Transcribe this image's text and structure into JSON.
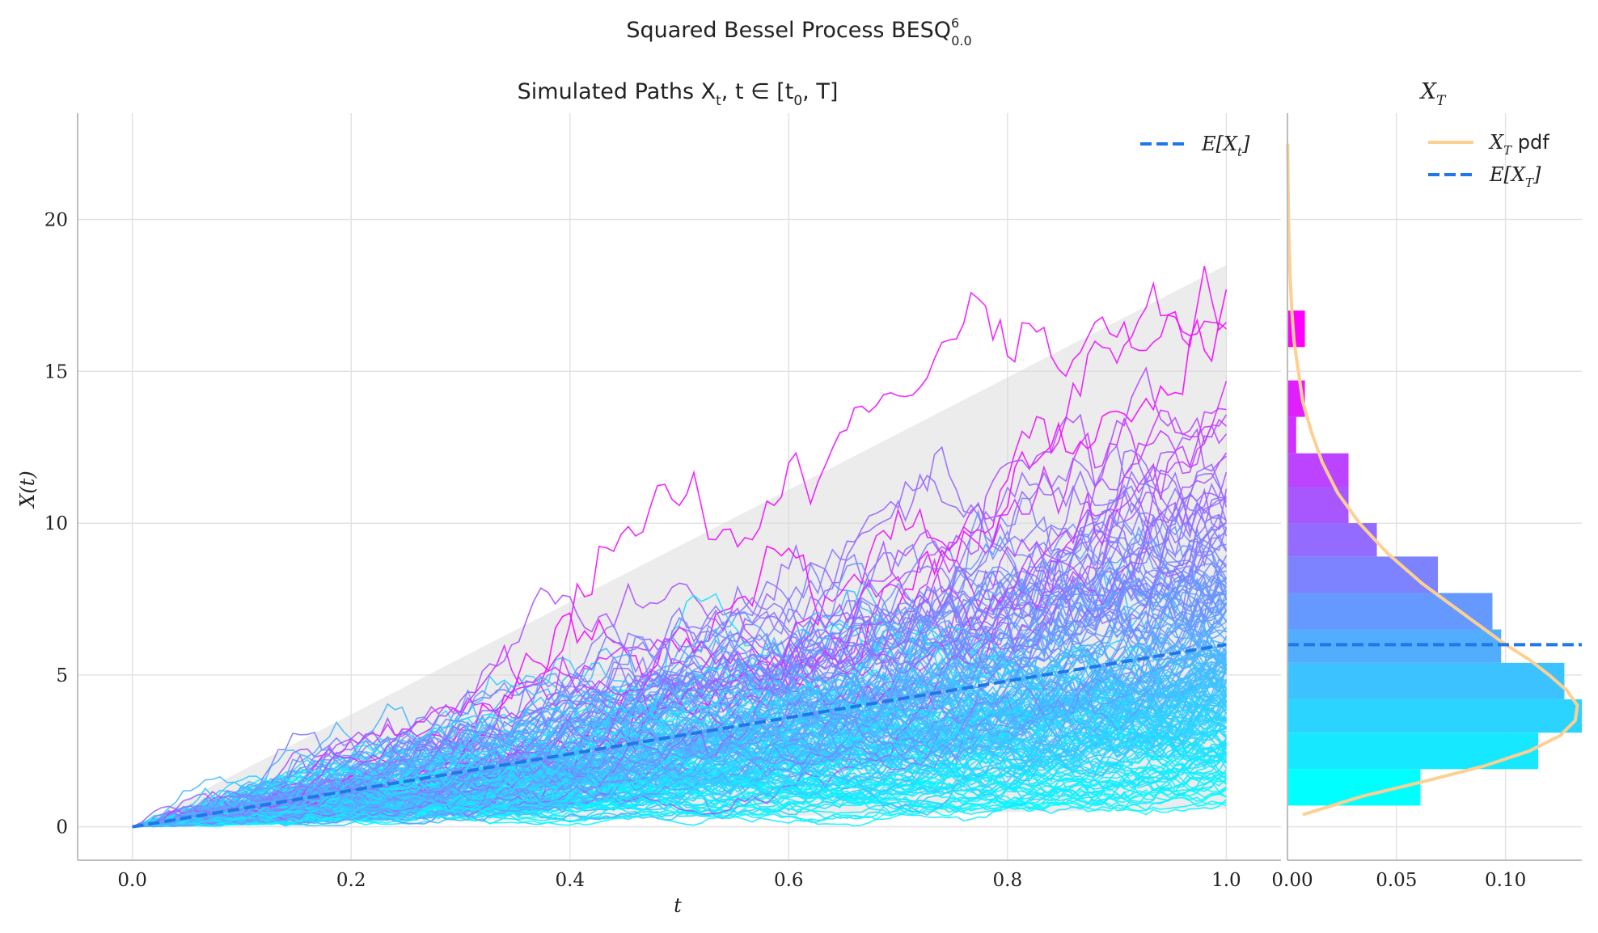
{
  "figure": {
    "suptitle": "Squared Bessel Process BESQ",
    "suptitle_sup": "6",
    "suptitle_sub": "0.0"
  },
  "chart_data": [
    {
      "type": "line",
      "title": "Simulated Paths X",
      "title_sub": "t",
      "title_tail": ", t ∈ [t",
      "title_sub2": "0",
      "title_end": ", T]",
      "xlabel": "t",
      "ylabel": "X(t)",
      "xlim": [
        -0.05,
        1.05
      ],
      "ylim": [
        -1.1,
        23.5
      ],
      "xticks": [
        0.0,
        0.2,
        0.4,
        0.6,
        0.8,
        1.0
      ],
      "xtick_labels": [
        "0.0",
        "0.2",
        "0.4",
        "0.6",
        "0.8",
        "1.0"
      ],
      "yticks": [
        0,
        5,
        10,
        15,
        20
      ],
      "ytick_labels": [
        "0",
        "5",
        "10",
        "15",
        "20"
      ],
      "grid": true,
      "legend_position": "top-right",
      "mean_line": {
        "name": "E[X",
        "name_sub": "t",
        "name_end": "]",
        "x": [
          0.0,
          1.0
        ],
        "y": [
          0.0,
          6.0
        ],
        "color": "#1f77e8"
      },
      "confidence_band": {
        "x": [
          0.0,
          1.0
        ],
        "upper": [
          0.0,
          18.5
        ],
        "lower": [
          0.0,
          0.6
        ],
        "color": "#d9d9d9"
      },
      "simulated_paths": {
        "count": 200,
        "x_start": 0.0,
        "x_end": 1.0,
        "y_start": 0.0,
        "final_value_range": [
          0.7,
          17.7
        ],
        "colormap": "cool"
      }
    },
    {
      "type": "bar",
      "orientation": "horizontal",
      "title": "X",
      "title_sub": "T",
      "xlim": [
        0.0,
        0.135
      ],
      "ylim": [
        -1.1,
        23.5
      ],
      "xticks": [
        0.0,
        0.05,
        0.1
      ],
      "xtick_labels": [
        "0.00",
        "0.05",
        "0.10"
      ],
      "legend_position": "top-right",
      "bins": [
        {
          "y0": 0.7,
          "y1": 1.9,
          "density": 0.061,
          "color": "#00ffff"
        },
        {
          "y0": 1.9,
          "y1": 3.1,
          "density": 0.115,
          "color": "#16e9ff"
        },
        {
          "y0": 3.1,
          "y1": 4.2,
          "density": 0.135,
          "color": "#2bd4ff"
        },
        {
          "y0": 4.2,
          "y1": 5.4,
          "density": 0.127,
          "color": "#3cc3ff"
        },
        {
          "y0": 5.4,
          "y1": 6.5,
          "density": 0.098,
          "color": "#52adff"
        },
        {
          "y0": 6.5,
          "y1": 7.7,
          "density": 0.094,
          "color": "#6699ff"
        },
        {
          "y0": 7.7,
          "y1": 8.9,
          "density": 0.069,
          "color": "#7d82ff"
        },
        {
          "y0": 8.9,
          "y1": 10.0,
          "density": 0.041,
          "color": "#936cff"
        },
        {
          "y0": 10.0,
          "y1": 11.2,
          "density": 0.028,
          "color": "#a857ff"
        },
        {
          "y0": 11.2,
          "y1": 12.3,
          "density": 0.028,
          "color": "#bc43ff"
        },
        {
          "y0": 12.3,
          "y1": 13.5,
          "density": 0.004,
          "color": "#d02fff"
        },
        {
          "y0": 13.5,
          "y1": 14.7,
          "density": 0.008,
          "color": "#e11eff"
        },
        {
          "y0": 14.7,
          "y1": 15.8,
          "density": 0.0,
          "color": "#f00fff"
        },
        {
          "y0": 15.8,
          "y1": 17.0,
          "density": 0.008,
          "color": "#ff00ff"
        }
      ],
      "pdf_curve": {
        "name": "X",
        "name_sub": "T",
        "name_end": " pdf",
        "color": "#fdd092",
        "y": [
          0.4,
          1.0,
          1.5,
          2.0,
          2.5,
          3.0,
          3.5,
          4.0,
          4.5,
          5.0,
          5.5,
          6.0,
          7.0,
          8.0,
          9.0,
          10.0,
          11.0,
          12.0,
          13.0,
          14.0,
          15.0,
          16.0,
          17.0,
          18.0,
          19.0,
          20.0,
          21.0,
          22.5
        ],
        "density": [
          0.007,
          0.034,
          0.063,
          0.09,
          0.111,
          0.125,
          0.132,
          0.133,
          0.128,
          0.12,
          0.111,
          0.1,
          0.081,
          0.062,
          0.046,
          0.033,
          0.023,
          0.016,
          0.011,
          0.007,
          0.005,
          0.003,
          0.002,
          0.0013,
          0.0008,
          0.0005,
          0.0003,
          0.0001
        ]
      },
      "mean_line": {
        "name": "E[X",
        "name_sub": "T",
        "name_end": "]",
        "y": 6.0,
        "color": "#1f77e8"
      }
    }
  ]
}
